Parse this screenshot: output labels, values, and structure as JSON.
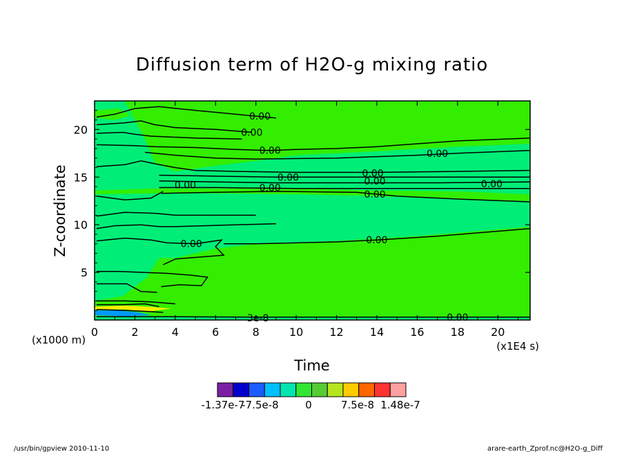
{
  "chart_data": {
    "type": "heatmap",
    "title": "Diffusion term of H2O-g mixing ratio",
    "xlabel": "Time",
    "ylabel": "Z-coordinate",
    "x_unit": "(x1E4 s)",
    "y_unit": "(x1000 m)",
    "xlim": [
      0,
      21.6
    ],
    "ylim": [
      0,
      23
    ],
    "x_ticks": [
      0,
      2,
      4,
      6,
      8,
      10,
      12,
      14,
      16,
      18,
      20
    ],
    "y_ticks": [
      5,
      10,
      15,
      20
    ],
    "grid": false,
    "background_value": 0,
    "contour_labels": [
      {
        "text": "0.00",
        "x": 8.2,
        "y": 21.4
      },
      {
        "text": "0.00",
        "x": 7.8,
        "y": 19.7
      },
      {
        "text": "0.00",
        "x": 8.7,
        "y": 17.8
      },
      {
        "text": "0.00",
        "x": 17.0,
        "y": 17.5
      },
      {
        "text": "0.00",
        "x": 9.6,
        "y": 15.0
      },
      {
        "text": "0.00",
        "x": 13.8,
        "y": 15.4
      },
      {
        "text": "0.00",
        "x": 13.9,
        "y": 14.6
      },
      {
        "text": "0.00",
        "x": 4.5,
        "y": 14.2
      },
      {
        "text": "0.00",
        "x": 8.7,
        "y": 13.9
      },
      {
        "text": "0.00",
        "x": 13.9,
        "y": 13.2
      },
      {
        "text": "0.00",
        "x": 19.7,
        "y": 14.3
      },
      {
        "text": "0.00",
        "x": 4.8,
        "y": 8.0
      },
      {
        "text": "0.00",
        "x": 14.0,
        "y": 8.4
      },
      {
        "text": "0.00",
        "x": 18.0,
        "y": 0.3
      },
      {
        "text": "3e-8",
        "x": 8.1,
        "y": 0.2
      }
    ],
    "colorbar": {
      "colors": [
        "#7b1fa2",
        "#0000cc",
        "#1a5cff",
        "#00bfff",
        "#00e5b0",
        "#33e533",
        "#55cc33",
        "#b5e61d",
        "#ffcc00",
        "#ff6600",
        "#ff3333",
        "#ffa0a0"
      ],
      "tick_labels": [
        "-1.37e-7",
        "-7.5e-8",
        "0",
        "7.5e-8",
        "1.48e-7"
      ],
      "tick_values": [
        -1.37e-07,
        -7.5e-08,
        0,
        7.5e-08,
        1.48e-07
      ]
    }
  },
  "footer": {
    "left": "/usr/bin/gpview  2010-11-10",
    "right": "arare-earth_Zprof.nc@H2O-g_Diff"
  },
  "colors": {
    "field_main": "#33ee00",
    "field_light": "#00ee77",
    "field_pos": "#ffee00",
    "field_neg": "#0099ff"
  }
}
